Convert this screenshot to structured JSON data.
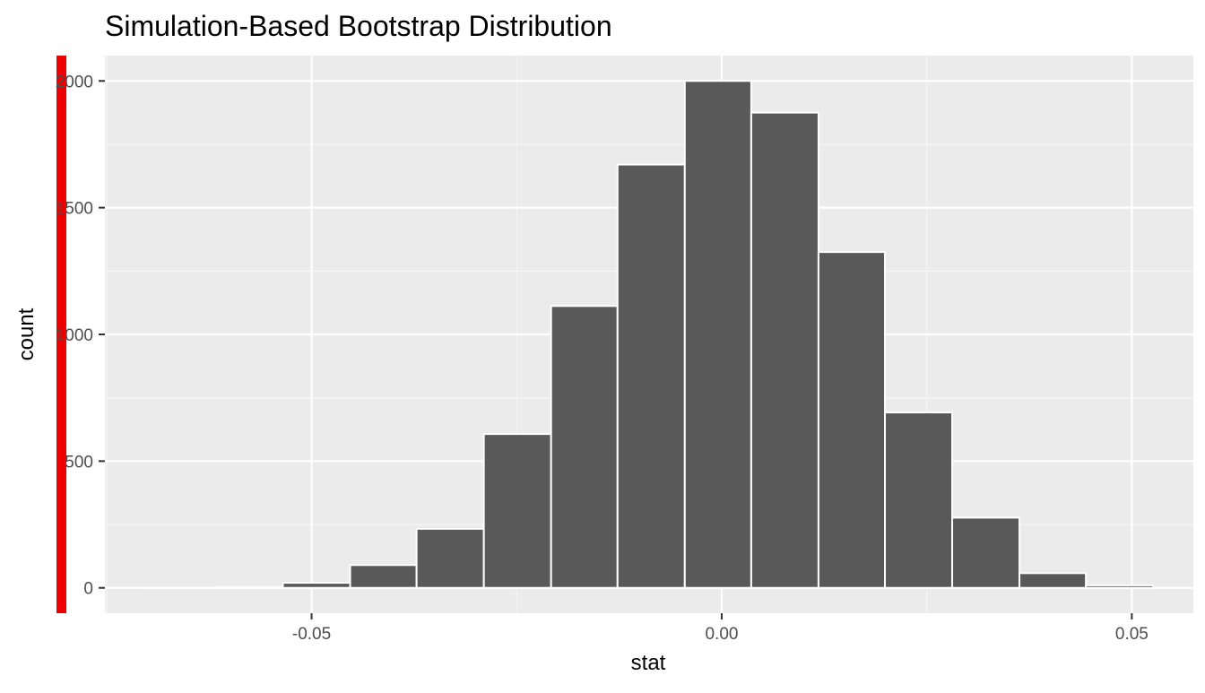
{
  "chart_data": {
    "type": "bar",
    "title": "Simulation-Based Bootstrap Distribution",
    "xlabel": "stat",
    "ylabel": "count",
    "xlim": [
      -0.0752,
      0.0575
    ],
    "ylim": [
      -100,
      2100
    ],
    "x_ticks": [
      {
        "value": -0.05,
        "label": "-0.05"
      },
      {
        "value": 0.0,
        "label": "0.00"
      },
      {
        "value": 0.05,
        "label": "0.05"
      }
    ],
    "x_minor_ticks": [
      -0.075,
      -0.025,
      0.025
    ],
    "y_ticks": [
      {
        "value": 0,
        "label": "0"
      },
      {
        "value": 500,
        "label": "500"
      },
      {
        "value": 1000,
        "label": "1000"
      },
      {
        "value": 1500,
        "label": "1500"
      },
      {
        "value": 2000,
        "label": "2000"
      }
    ],
    "y_minor_ticks": [
      250,
      750,
      1250,
      1750
    ],
    "bins": [
      {
        "xmin": -0.0698,
        "xmax": -0.0616,
        "count": 1
      },
      {
        "xmin": -0.0616,
        "xmax": -0.0535,
        "count": 3
      },
      {
        "xmin": -0.0535,
        "xmax": -0.0453,
        "count": 20
      },
      {
        "xmin": -0.0453,
        "xmax": -0.0372,
        "count": 90
      },
      {
        "xmin": -0.0372,
        "xmax": -0.029,
        "count": 233
      },
      {
        "xmin": -0.029,
        "xmax": -0.0208,
        "count": 607
      },
      {
        "xmin": -0.0208,
        "xmax": -0.0127,
        "count": 1112
      },
      {
        "xmin": -0.0127,
        "xmax": -0.0045,
        "count": 1670
      },
      {
        "xmin": -0.0045,
        "xmax": 0.0036,
        "count": 2000
      },
      {
        "xmin": 0.0036,
        "xmax": 0.0118,
        "count": 1875
      },
      {
        "xmin": 0.0118,
        "xmax": 0.0199,
        "count": 1325
      },
      {
        "xmin": 0.0199,
        "xmax": 0.0281,
        "count": 692
      },
      {
        "xmin": 0.0281,
        "xmax": 0.0363,
        "count": 277
      },
      {
        "xmin": 0.0363,
        "xmax": 0.0444,
        "count": 58
      },
      {
        "xmin": 0.0444,
        "xmax": 0.0526,
        "count": 10
      }
    ],
    "reference_line": {
      "x": -0.0805,
      "color": "#ee0000"
    },
    "grid": true,
    "colors": {
      "panel_background": "#ebebeb",
      "grid_major": "#ffffff",
      "grid_minor": "#f7f7f7",
      "bar_fill": "#595959",
      "bar_outline": "#ffffff",
      "tick_label": "#4d4d4d",
      "tick_mark": "#333333",
      "text": "#000000"
    }
  }
}
